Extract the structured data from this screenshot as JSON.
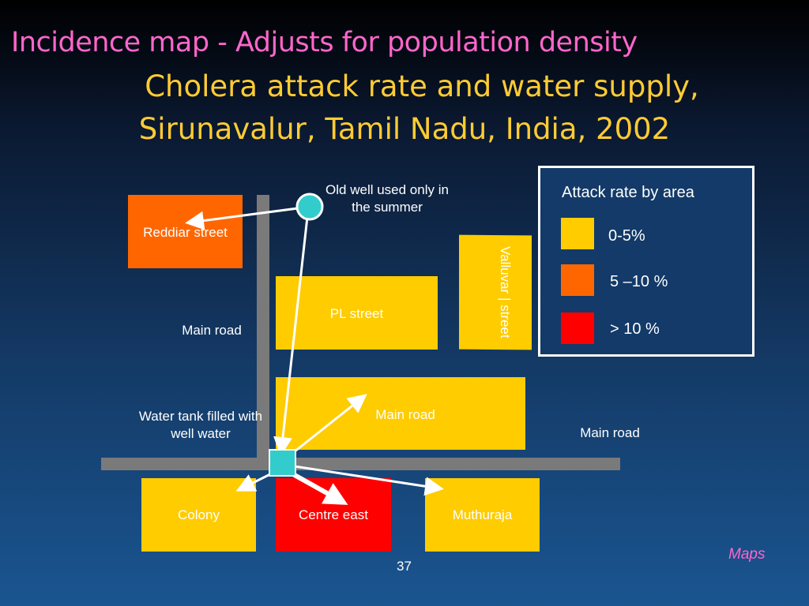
{
  "header": {
    "title_top": "Incidence map - Adjusts for population density",
    "title_line1": "Cholera attack rate and water supply,",
    "title_line2": "Sirunavalur,  Tamil Nadu, India, 2002"
  },
  "map": {
    "areas": {
      "reddiar": "Reddiar street",
      "pl": "PL street",
      "valluvar": "Valluvar | street",
      "main_road_block": "Main road",
      "colony": "Colony",
      "centre_east": "Centre east",
      "muthuraja": "Muthuraja"
    },
    "labels": {
      "old_well": "Old well used only in the summer",
      "main_road_left": "Main road",
      "water_tank": "Water tank filled with well water",
      "main_road_right": "Main road"
    }
  },
  "legend": {
    "title": "Attack rate by area",
    "items": [
      {
        "label": "0-5%",
        "color": "#ffcc00"
      },
      {
        "label": "5 –10 %",
        "color": "#ff6600"
      },
      {
        "label": "> 10 %",
        "color": "#ff0000"
      }
    ]
  },
  "footer": {
    "page_number": "37",
    "section": "Maps"
  }
}
